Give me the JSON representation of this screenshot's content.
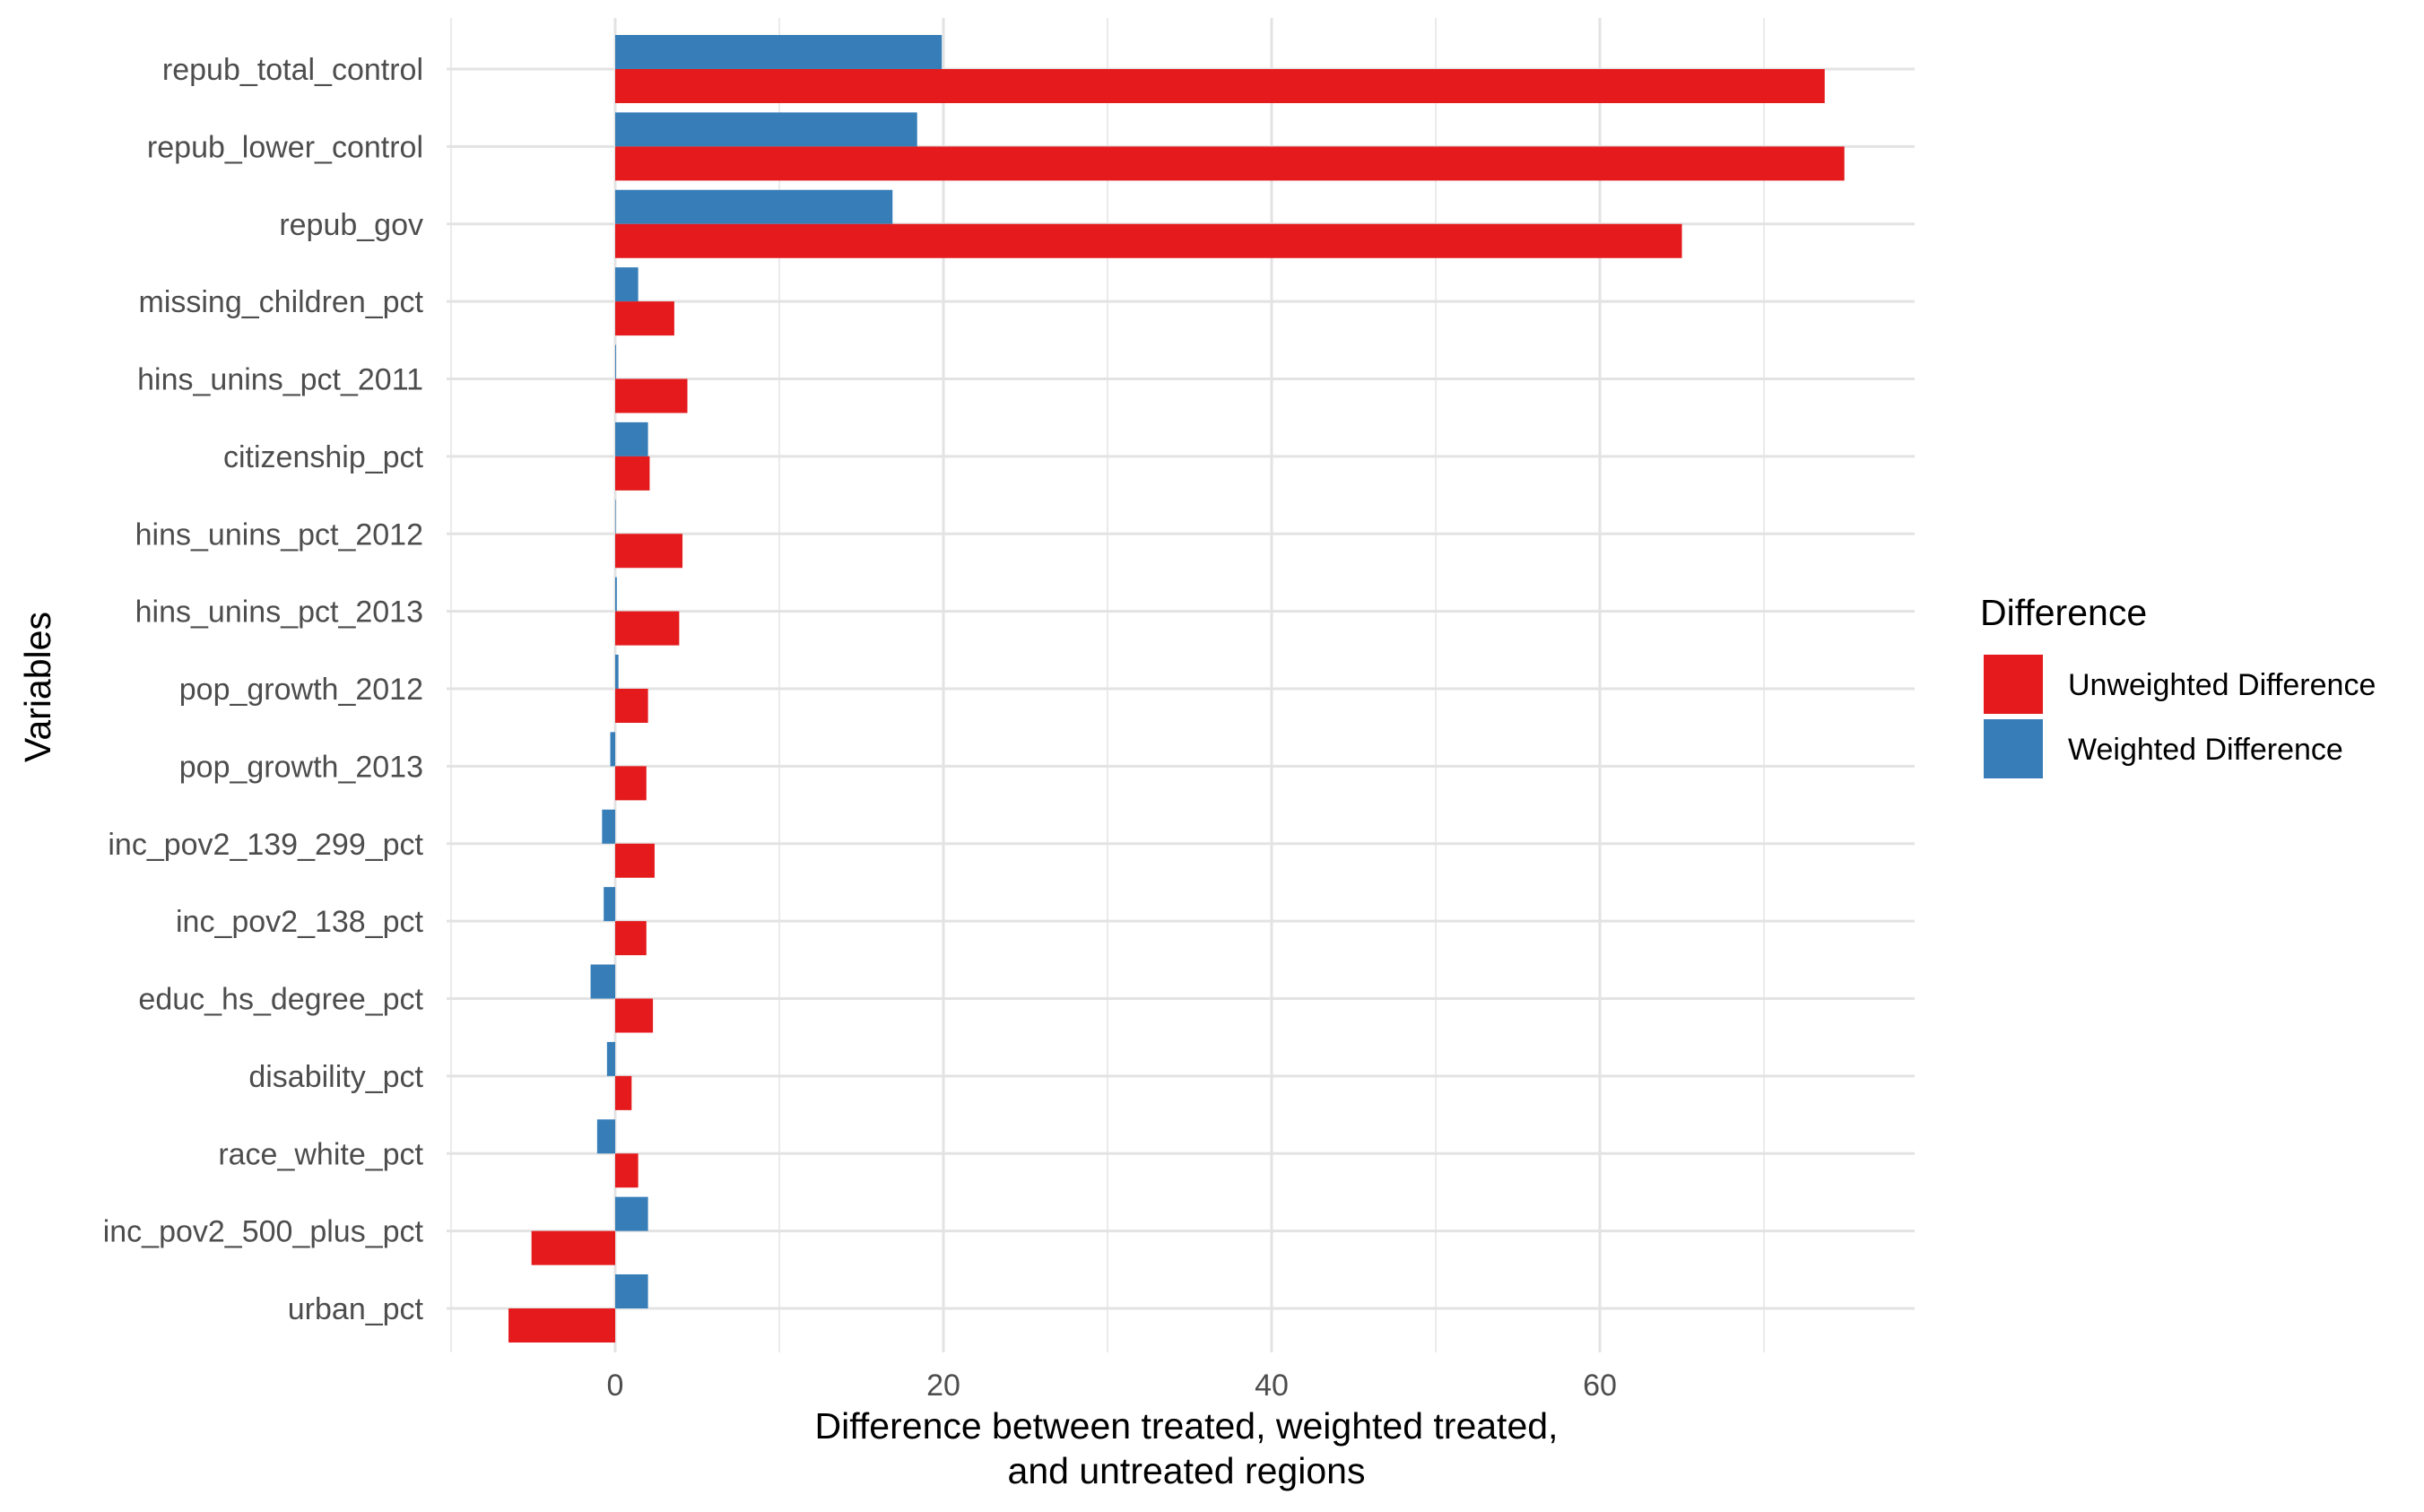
{
  "chart_data": {
    "type": "bar",
    "orientation": "horizontal",
    "title": "",
    "xlabel_lines": [
      "Difference between treated, weighted treated,",
      "and untreated regions"
    ],
    "ylabel": "Variables",
    "xlim": [
      -10,
      78
    ],
    "xticks": [
      0,
      20,
      40,
      60
    ],
    "x_minor_gridlines": [
      -10,
      10,
      30,
      50,
      70
    ],
    "grid": true,
    "categories": [
      "repub_total_control",
      "repub_lower_control",
      "repub_gov",
      "missing_children_pct",
      "hins_unins_pct_2011",
      "citizenship_pct",
      "hins_unins_pct_2012",
      "hins_unins_pct_2013",
      "pop_growth_2012",
      "pop_growth_2013",
      "inc_pov2_139_299_pct",
      "inc_pov2_138_pct",
      "educ_hs_degree_pct",
      "disability_pct",
      "race_white_pct",
      "inc_pov2_500_plus_pct",
      "urban_pct"
    ],
    "series": [
      {
        "name": "Unweighted Difference",
        "color": "#E41A1C",
        "values": [
          73.7,
          74.9,
          65.0,
          3.6,
          4.4,
          2.1,
          4.1,
          3.9,
          2.0,
          1.9,
          2.4,
          1.9,
          2.3,
          1.0,
          1.4,
          -5.1,
          -6.5
        ]
      },
      {
        "name": "Weighted Difference",
        "color": "#377EB8",
        "values": [
          19.9,
          18.4,
          16.9,
          1.4,
          0.05,
          2.0,
          0.0,
          0.1,
          0.2,
          -0.3,
          -0.8,
          -0.7,
          -1.5,
          -0.5,
          -1.1,
          2.0,
          2.0
        ]
      }
    ],
    "legend": {
      "title": "Difference",
      "placement": "right",
      "entries": [
        "Unweighted Difference",
        "Weighted Difference"
      ]
    }
  }
}
